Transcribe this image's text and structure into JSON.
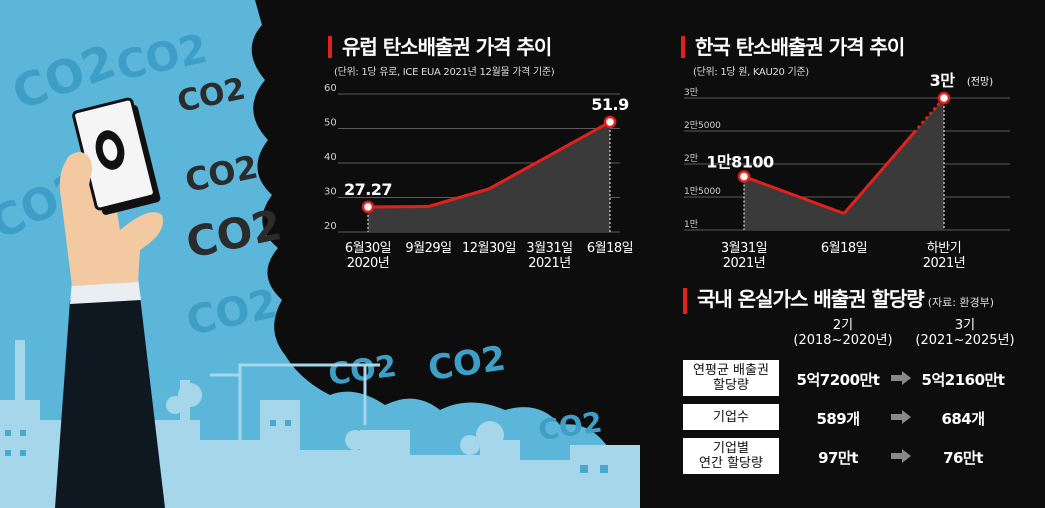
{
  "colors": {
    "sky": "#5bb6d9",
    "smoke": "#0d0d0d",
    "accent": "#e3211c",
    "line": "#e3211c",
    "area": "#3a3a3a"
  },
  "decor": {
    "co2": "CO2"
  },
  "chart_data": [
    {
      "type": "line",
      "title": "유럽 탄소배출권 가격 추이",
      "subtitle": "(단위: 1당 유로, ICE EUA 2021년 12월물 가격 기준)",
      "categories": [
        "6월30일\n2020년",
        "9월29일",
        "12월30일",
        "3월31일\n2021년",
        "6월18일"
      ],
      "x": [
        0,
        1,
        2,
        3,
        4
      ],
      "values": [
        27.27,
        27.4,
        32.5,
        42.2,
        51.9
      ],
      "labels": [
        {
          "text": "27.27",
          "index": 0
        },
        {
          "text": "51.9",
          "index": 4
        }
      ],
      "ylim": [
        20,
        60
      ],
      "yticks": [
        "60",
        "50",
        "40",
        "30",
        "20"
      ],
      "ytick_values": [
        60,
        50,
        40,
        30,
        20
      ],
      "grid": true
    },
    {
      "type": "line",
      "title": "한국 탄소배출권 가격 추이",
      "subtitle": "(단위: 1당 원, KAU20 기준)",
      "categories": [
        "3월31일\n2021년",
        "6월18일",
        "하반기\n2021년"
      ],
      "x": [
        0,
        1,
        2
      ],
      "values": [
        18100,
        12500,
        30000
      ],
      "forecast_from_index": 1,
      "labels": [
        {
          "text": "1만8100",
          "index": 0
        },
        {
          "text": "3만",
          "index": 2,
          "note": "(전망)"
        }
      ],
      "ylim": [
        10000,
        30000
      ],
      "yticks": [
        "3만",
        "2만5000",
        "2만",
        "1만5000",
        "1만"
      ],
      "ytick_values": [
        30000,
        25000,
        20000,
        15000,
        10000
      ],
      "grid": true
    }
  ],
  "allocation": {
    "title": "국내 온실가스 배출권 할당량",
    "source": "(자료: 환경부)",
    "columns": [
      "2기\n(2018~2020년)",
      "3기\n(2021~2025년)"
    ],
    "rows": [
      {
        "label": "연평균 배출권\n할당량",
        "phase2": "5억7200만t",
        "phase3": "5억2160만t"
      },
      {
        "label": "기업수",
        "phase2": "589개",
        "phase3": "684개"
      },
      {
        "label": "기업별\n연간 할당량",
        "phase2": "97만t",
        "phase3": "76만t"
      }
    ]
  }
}
